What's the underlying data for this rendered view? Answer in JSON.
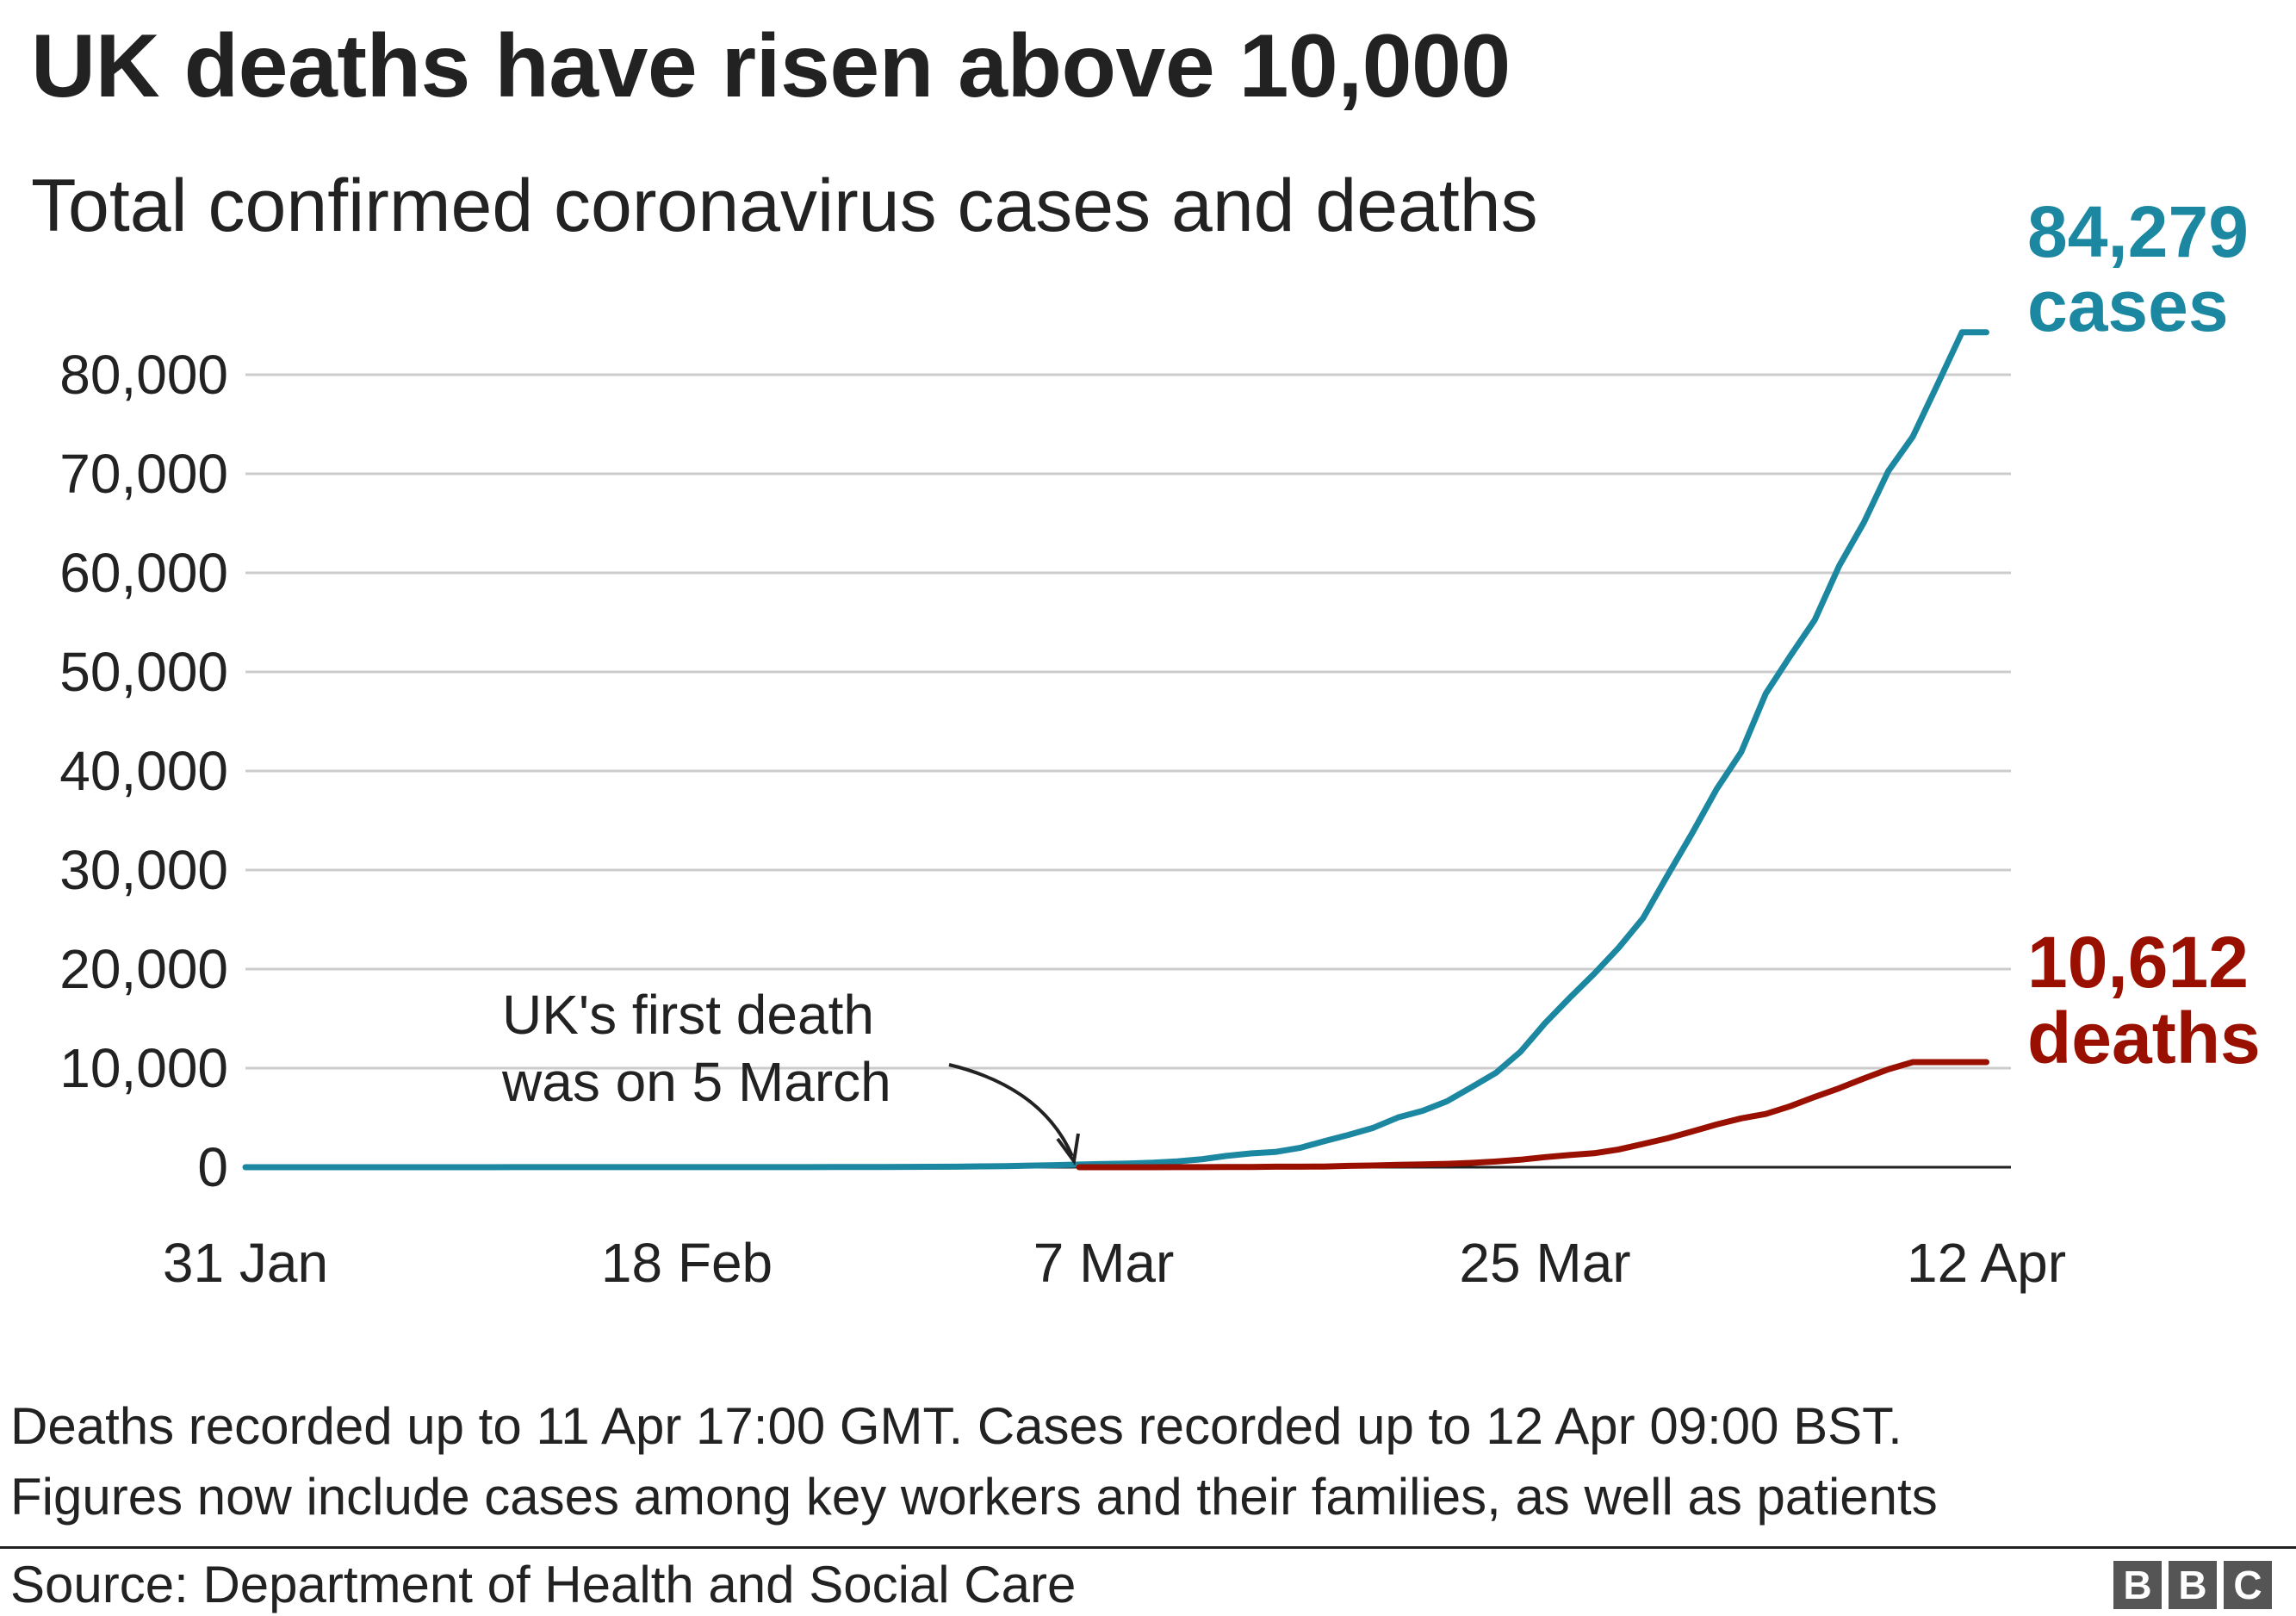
{
  "title": "UK deaths have risen above 10,000",
  "subtitle": "Total confirmed coronavirus cases and deaths",
  "annotation": {
    "line1": "UK's first death",
    "line2": "was on 5 March"
  },
  "labels": {
    "cases_value": "84,279",
    "cases_word": "cases",
    "deaths_value": "10,612",
    "deaths_word": "deaths"
  },
  "colors": {
    "cases": "#1b87a1",
    "deaths": "#990f00",
    "grid": "#cccccc",
    "axis": "#222222",
    "text": "#222222"
  },
  "notes": {
    "line1": "Deaths recorded up to 11 Apr 17:00 GMT. Cases recorded up to 12 Apr 09:00 BST.",
    "line2": "Figures now include cases among key workers and their families, as well as patients"
  },
  "source": "Source: Department of Health and Social Care",
  "logo": {
    "letters": [
      "B",
      "B",
      "C"
    ]
  },
  "chart_data": {
    "type": "line",
    "title": "UK deaths have risen above 10,000",
    "subtitle": "Total confirmed coronavirus cases and deaths",
    "xlabel": "",
    "ylabel": "",
    "x_start_label": "31 Jan",
    "x_days_range": [
      0,
      72
    ],
    "ylim": [
      0,
      80000
    ],
    "yticks": [
      0,
      10000,
      20000,
      30000,
      40000,
      50000,
      60000,
      70000,
      80000
    ],
    "ytick_labels": [
      "0",
      "10,000",
      "20,000",
      "30,000",
      "40,000",
      "50,000",
      "60,000",
      "70,000",
      "80,000"
    ],
    "xticks": [
      {
        "day": 0,
        "label": "31 Jan"
      },
      {
        "day": 18,
        "label": "18 Feb"
      },
      {
        "day": 35,
        "label": "7 Mar"
      },
      {
        "day": 53,
        "label": "25 Mar"
      },
      {
        "day": 71,
        "label": "12 Apr"
      }
    ],
    "grid": true,
    "series": [
      {
        "name": "cases",
        "x": [
          0,
          1,
          2,
          3,
          4,
          5,
          6,
          7,
          8,
          9,
          10,
          11,
          12,
          13,
          14,
          15,
          16,
          17,
          18,
          19,
          20,
          21,
          22,
          23,
          24,
          25,
          26,
          27,
          28,
          29,
          30,
          31,
          32,
          33,
          34,
          35,
          36,
          37,
          38,
          39,
          40,
          41,
          42,
          43,
          44,
          45,
          46,
          47,
          48,
          49,
          50,
          51,
          52,
          53,
          54,
          55,
          56,
          57,
          58,
          59,
          60,
          61,
          62,
          63,
          64,
          65,
          66,
          67,
          68,
          69,
          70,
          71
        ],
        "values": [
          2,
          2,
          2,
          2,
          2,
          2,
          2,
          2,
          3,
          3,
          3,
          8,
          8,
          9,
          9,
          9,
          9,
          9,
          9,
          9,
          9,
          9,
          9,
          13,
          15,
          20,
          23,
          36,
          40,
          51,
          85,
          115,
          163,
          206,
          273,
          321,
          373,
          456,
          590,
          798,
          1140,
          1391,
          1543,
          1950,
          2626,
          3269,
          3983,
          5018,
          5683,
          6650,
          8077,
          9529,
          11658,
          14543,
          17089,
          19522,
          22141,
          25150,
          29474,
          33718,
          38168,
          41903,
          47806,
          51608,
          55242,
          60733,
          65077,
          70272,
          73758,
          78991,
          84279,
          84279
        ]
      },
      {
        "name": "deaths",
        "x": [
          34,
          35,
          36,
          37,
          38,
          39,
          40,
          41,
          42,
          43,
          44,
          45,
          46,
          47,
          48,
          49,
          50,
          51,
          52,
          53,
          54,
          55,
          56,
          57,
          58,
          59,
          60,
          61,
          62,
          63,
          64,
          65,
          66,
          67,
          68,
          69,
          70,
          71
        ],
        "values": [
          1,
          1,
          2,
          3,
          8,
          10,
          21,
          21,
          56,
          56,
          72,
          138,
          178,
          233,
          282,
          336,
          433,
          578,
          759,
          1019,
          1228,
          1408,
          1789,
          2352,
          2921,
          3605,
          4313,
          4934,
          5373,
          6159,
          7097,
          7978,
          8958,
          9875,
          10612,
          10612,
          10612,
          10612
        ]
      }
    ],
    "end_labels": [
      {
        "series": "cases",
        "value": 84279,
        "text": "84,279 cases"
      },
      {
        "series": "deaths",
        "value": 10612,
        "text": "10,612 deaths"
      }
    ],
    "annotations": [
      {
        "text": "UK's first death was on 5 March",
        "day": 34
      }
    ]
  }
}
